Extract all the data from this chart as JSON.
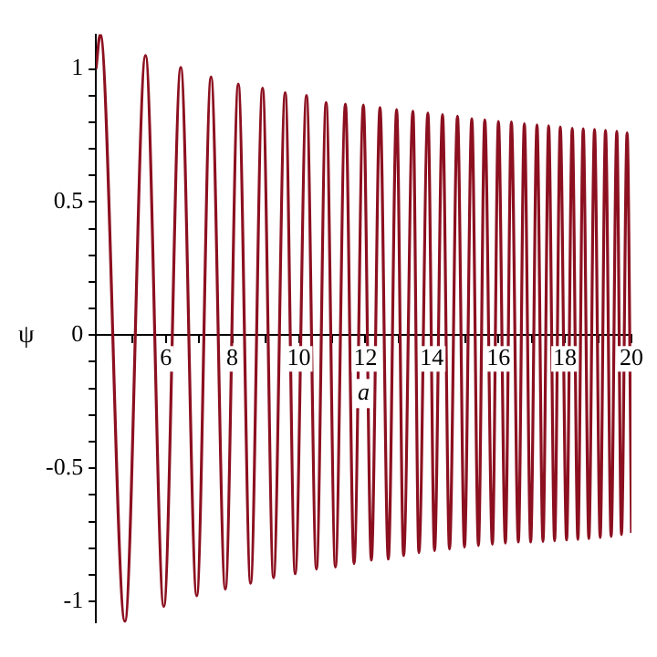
{
  "chart_data": {
    "type": "line",
    "xlabel": "a",
    "ylabel": "ψ",
    "x": [
      3.9,
      4.03,
      4.77,
      5.39,
      5.94,
      6.45,
      6.93,
      7.36,
      7.79,
      8.18,
      8.55,
      8.91,
      9.24,
      9.59,
      9.89,
      10.23,
      10.53,
      10.82,
      11.1,
      11.4,
      11.66,
      11.94,
      12.18,
      12.44,
      12.69,
      12.94,
      13.15,
      13.43,
      13.61,
      13.88,
      14.08,
      14.32,
      14.53,
      14.77,
      14.98,
      15.2,
      15.4,
      15.59,
      15.82,
      16.0,
      16.21,
      16.39,
      16.6,
      16.78,
      16.97,
      17.16,
      17.34,
      17.51,
      17.69,
      17.86,
      18.05,
      18.22,
      18.39,
      18.55,
      18.72,
      18.89,
      19.06,
      19.22,
      19.39,
      19.56,
      19.7,
      19.87,
      20
    ],
    "series": [
      {
        "color": "#8c1020",
        "values": [
          1.0,
          1.13,
          -1.075,
          1.05,
          -1.019,
          1.006,
          -0.979,
          0.97,
          -0.954,
          0.943,
          -0.932,
          0.928,
          -0.911,
          0.911,
          -0.896,
          0.9,
          -0.879,
          0.874,
          -0.871,
          0.868,
          -0.858,
          0.864,
          -0.845,
          0.855,
          -0.841,
          0.847,
          -0.828,
          0.841,
          -0.817,
          0.834,
          -0.809,
          0.828,
          -0.803,
          0.822,
          -0.796,
          0.813,
          -0.79,
          0.809,
          -0.785,
          0.803,
          -0.781,
          0.801,
          -0.777,
          0.794,
          -0.777,
          0.79,
          -0.775,
          0.786,
          -0.772,
          0.782,
          -0.769,
          0.777,
          -0.767,
          0.775,
          -0.764,
          0.773,
          -0.76,
          0.769,
          -0.756,
          0.766,
          -0.749,
          0.76,
          -0.743
        ]
      }
    ],
    "xlim": [
      3.9,
      20
    ],
    "xticks": [
      {
        "value": 5,
        "label": null
      },
      6,
      {
        "value": 7,
        "label": null
      },
      8,
      {
        "value": 9,
        "label": null
      },
      10,
      {
        "value": 11,
        "label": null
      },
      12,
      {
        "value": 13,
        "label": null
      },
      14,
      {
        "value": 15,
        "label": null
      },
      16,
      {
        "value": 17,
        "label": null
      },
      18,
      {
        "value": 19,
        "label": null
      },
      20
    ],
    "ylim": [
      -1.08,
      1.13
    ],
    "yticks": [
      -1,
      {
        "value": -0.9,
        "label": null
      },
      {
        "value": -0.8,
        "label": null
      },
      {
        "value": -0.7,
        "label": null
      },
      {
        "value": -0.6,
        "label": null
      },
      -0.5,
      {
        "value": -0.4,
        "label": null
      },
      {
        "value": -0.3,
        "label": null
      },
      {
        "value": -0.2,
        "label": null
      },
      {
        "value": -0.1,
        "label": null
      },
      0,
      {
        "value": 0.1,
        "label": null
      },
      {
        "value": 0.2,
        "label": null
      },
      {
        "value": 0.3,
        "label": null
      },
      {
        "value": 0.4,
        "label": null
      },
      0.5,
      {
        "value": 0.6,
        "label": null
      },
      {
        "value": 0.7,
        "label": null
      },
      {
        "value": 0.8,
        "label": null
      },
      {
        "value": 0.9,
        "label": null
      },
      1
    ],
    "grid": false,
    "legend": false,
    "marker": "none",
    "line_style": "solid"
  }
}
